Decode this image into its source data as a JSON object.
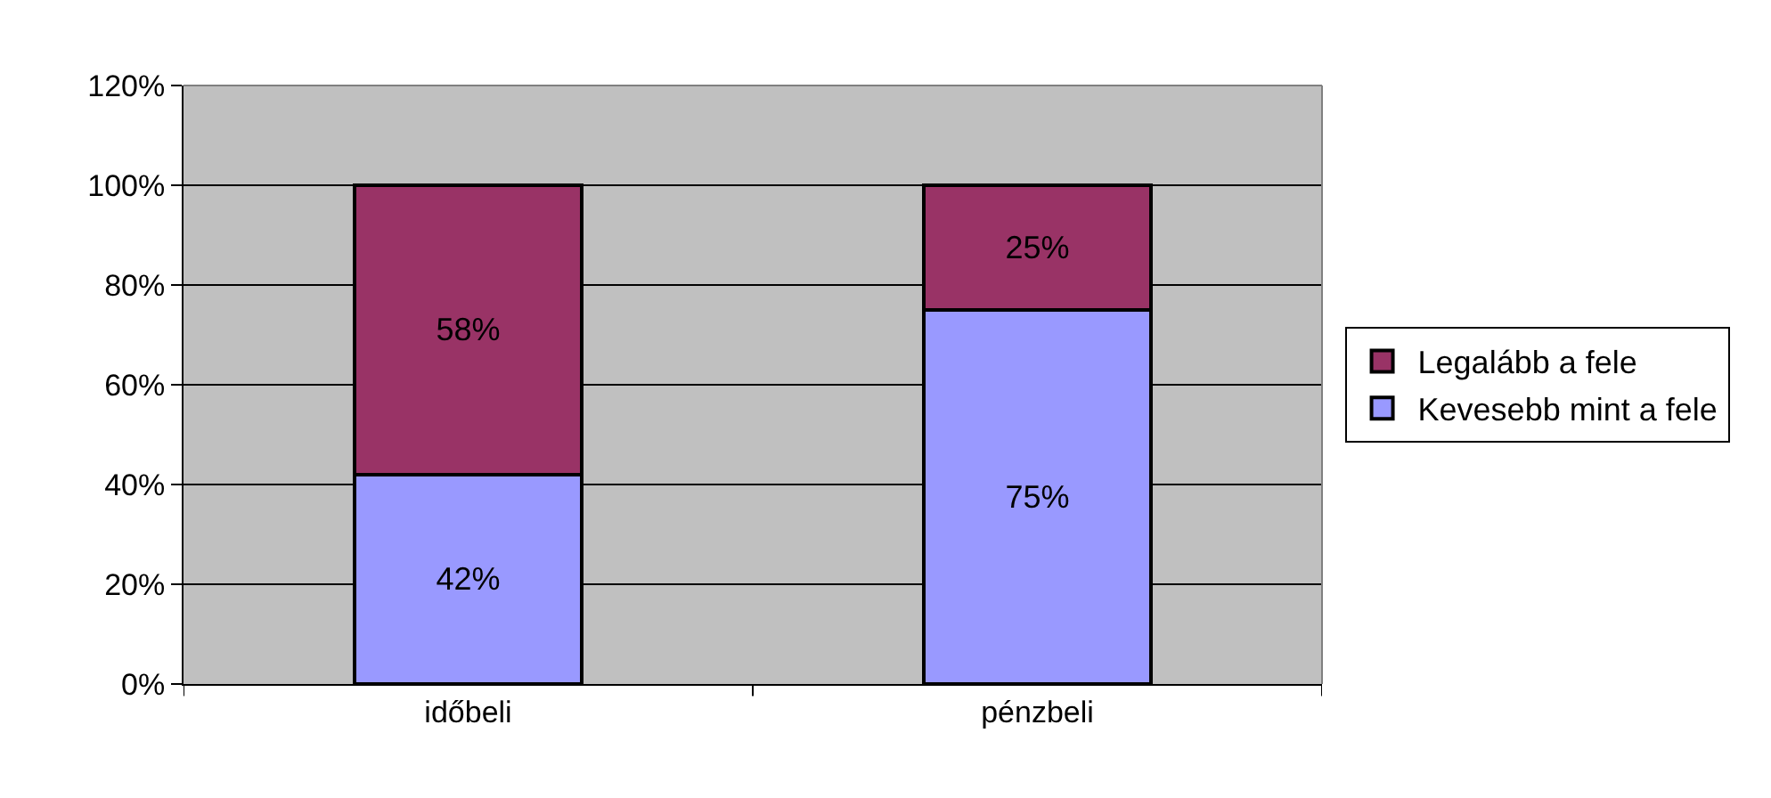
{
  "chart_data": {
    "type": "bar",
    "stacked": true,
    "categories": [
      "időbeli",
      "pénzbeli"
    ],
    "series": [
      {
        "name": "Kevesebb mint a fele",
        "color": "#9999ff",
        "values": [
          42,
          75
        ],
        "value_labels": [
          "42%",
          "75%"
        ]
      },
      {
        "name": "Legalább a fele",
        "color": "#993366",
        "values": [
          58,
          25
        ],
        "value_labels": [
          "58%",
          "25%"
        ]
      }
    ],
    "ylim": [
      0,
      120
    ],
    "yticks": [
      {
        "value": 0,
        "label": "0%"
      },
      {
        "value": 20,
        "label": "20%"
      },
      {
        "value": 40,
        "label": "40%"
      },
      {
        "value": 60,
        "label": "60%"
      },
      {
        "value": 80,
        "label": "80%"
      },
      {
        "value": 100,
        "label": "100%"
      },
      {
        "value": 120,
        "label": "120%"
      }
    ],
    "grid": "y",
    "legend": "right"
  }
}
